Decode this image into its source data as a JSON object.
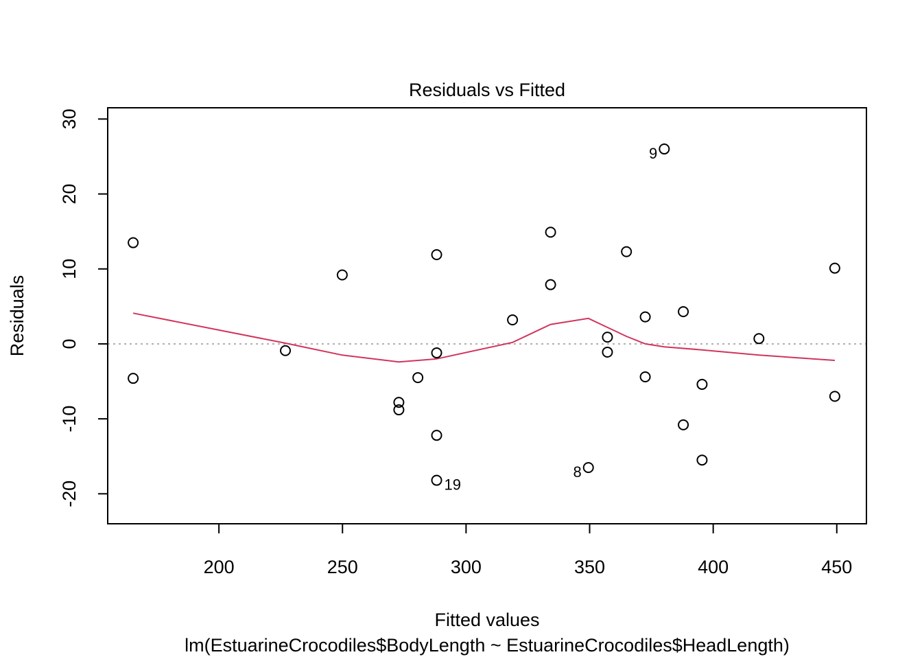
{
  "chart_data": {
    "type": "scatter",
    "title": "Residuals vs Fitted",
    "xlabel": "Fitted values",
    "ylabel": "Residuals",
    "subtitle": "lm(EstuarineCrocodiles$BodyLength ~ EstuarineCrocodiles$HeadLength)",
    "xlim": [
      155,
      462
    ],
    "ylim": [
      -24,
      31.5
    ],
    "x_ticks": [
      200,
      250,
      300,
      350,
      400,
      450
    ],
    "x_tick_labels": [
      "200",
      "250",
      "300",
      "350",
      "400",
      "450"
    ],
    "y_ticks": [
      -20,
      -10,
      0,
      10,
      20,
      30
    ],
    "y_tick_labels": [
      "-20",
      "-10",
      "0",
      "10",
      "20",
      "30"
    ],
    "grid": false,
    "legend": "none",
    "reference_line": {
      "y": 0,
      "style": "dotted",
      "color": "#b0b0b0"
    },
    "points": [
      {
        "x": 165.3,
        "y": 13.5
      },
      {
        "x": 165.3,
        "y": -4.6
      },
      {
        "x": 226.9,
        "y": -0.9
      },
      {
        "x": 249.9,
        "y": 9.2
      },
      {
        "x": 272.8,
        "y": -7.8
      },
      {
        "x": 272.8,
        "y": -8.8
      },
      {
        "x": 280.5,
        "y": -4.5
      },
      {
        "x": 288.1,
        "y": 11.9
      },
      {
        "x": 288.1,
        "y": -1.2
      },
      {
        "x": 288.1,
        "y": -12.2
      },
      {
        "x": 288.1,
        "y": -18.2,
        "label": "19"
      },
      {
        "x": 318.8,
        "y": 3.2
      },
      {
        "x": 334.2,
        "y": 14.9
      },
      {
        "x": 334.2,
        "y": 7.9
      },
      {
        "x": 349.5,
        "y": -16.5,
        "label": "8"
      },
      {
        "x": 357.2,
        "y": 0.9
      },
      {
        "x": 357.2,
        "y": -1.1
      },
      {
        "x": 364.9,
        "y": 12.3
      },
      {
        "x": 372.5,
        "y": 3.6
      },
      {
        "x": 372.5,
        "y": -4.4
      },
      {
        "x": 380.2,
        "y": 26.0,
        "label": "9"
      },
      {
        "x": 387.9,
        "y": 4.3
      },
      {
        "x": 387.9,
        "y": -10.8
      },
      {
        "x": 395.5,
        "y": -5.4
      },
      {
        "x": 395.5,
        "y": -15.5
      },
      {
        "x": 418.5,
        "y": 0.7
      },
      {
        "x": 449.2,
        "y": 10.1
      },
      {
        "x": 449.2,
        "y": -7.0
      }
    ],
    "smooth_line": {
      "color": "#d1345b",
      "x": [
        165.3,
        226.9,
        249.9,
        272.8,
        288.1,
        318.8,
        334.2,
        349.5,
        364.9,
        372.5,
        380.2,
        395.5,
        418.5,
        449.2
      ],
      "y": [
        4.1,
        0.1,
        -1.5,
        -2.4,
        -2.0,
        0.2,
        2.6,
        3.4,
        1.0,
        0.0,
        -0.4,
        -0.8,
        -1.5,
        -2.2
      ]
    }
  }
}
